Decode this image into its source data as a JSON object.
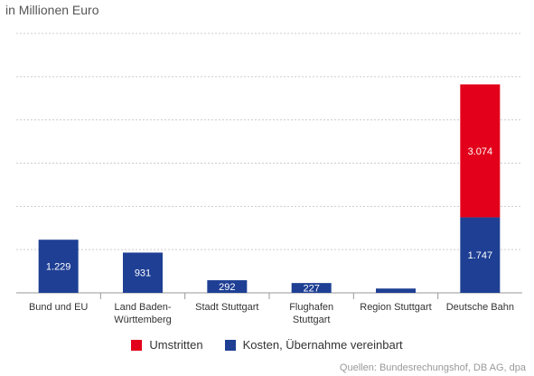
{
  "chart_data": {
    "type": "bar",
    "stacked": true,
    "unit_label": "in Millionen Euro",
    "categories": [
      "Bund und EU",
      "Land Baden-\nWürttemberg",
      "Stadt Stuttgart",
      "Flughafen\nStuttgart",
      "Region Stuttgart",
      "Deutsche Bahn"
    ],
    "series": [
      {
        "name": "Kosten, Übernahme vereinbart",
        "color": "#1e3f94",
        "values": [
          1229,
          931,
          292,
          227,
          100,
          1747
        ],
        "labels": [
          "1.229",
          "931",
          "292",
          "227",
          "",
          "1.747"
        ]
      },
      {
        "name": "Umstritten",
        "color": "#e2001a",
        "values": [
          0,
          0,
          0,
          0,
          0,
          3074
        ],
        "labels": [
          "",
          "",
          "",
          "",
          "",
          "3.074"
        ]
      }
    ],
    "ylim": [
      0,
      6000
    ],
    "yticks": [
      0,
      1000,
      2000,
      3000,
      4000,
      5000,
      6000
    ],
    "grid": true,
    "legend_position": "bottom",
    "legend": [
      {
        "name": "Umstritten",
        "color": "#e2001a"
      },
      {
        "name": "Kosten, Übernahme vereinbart",
        "color": "#1e3f94"
      }
    ],
    "source": "Quellen: Bundesrechungshof, DB AG, dpa"
  }
}
